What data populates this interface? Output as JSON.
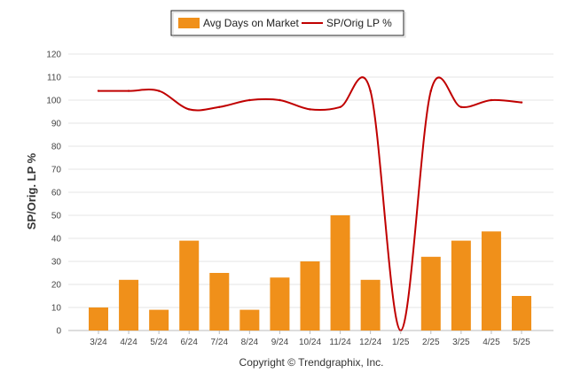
{
  "chart_data": {
    "type": "bar",
    "categories": [
      "3/24",
      "4/24",
      "5/24",
      "6/24",
      "7/24",
      "8/24",
      "9/24",
      "10/24",
      "11/24",
      "12/24",
      "1/25",
      "2/25",
      "3/25",
      "4/25",
      "5/25"
    ],
    "series": [
      {
        "name": "Avg Days on Market",
        "kind": "bar",
        "color": "#F0901A",
        "values": [
          10,
          22,
          9,
          39,
          25,
          9,
          23,
          30,
          50,
          22,
          0,
          32,
          39,
          43,
          15
        ]
      },
      {
        "name": "SP/Orig LP %",
        "kind": "line",
        "color": "#C00000",
        "values": [
          104,
          104,
          104,
          96,
          97,
          100,
          100,
          96,
          97,
          104,
          0,
          104,
          97,
          100,
          99
        ]
      }
    ],
    "ylabel": "SP/Orig. LP %",
    "ylim": [
      0,
      120
    ],
    "yticks": [
      0,
      10,
      20,
      30,
      40,
      50,
      60,
      70,
      80,
      90,
      100,
      110,
      120
    ],
    "grid": true,
    "legend": "top-center"
  },
  "footer": "Copyright © Trendgraphix, Inc."
}
